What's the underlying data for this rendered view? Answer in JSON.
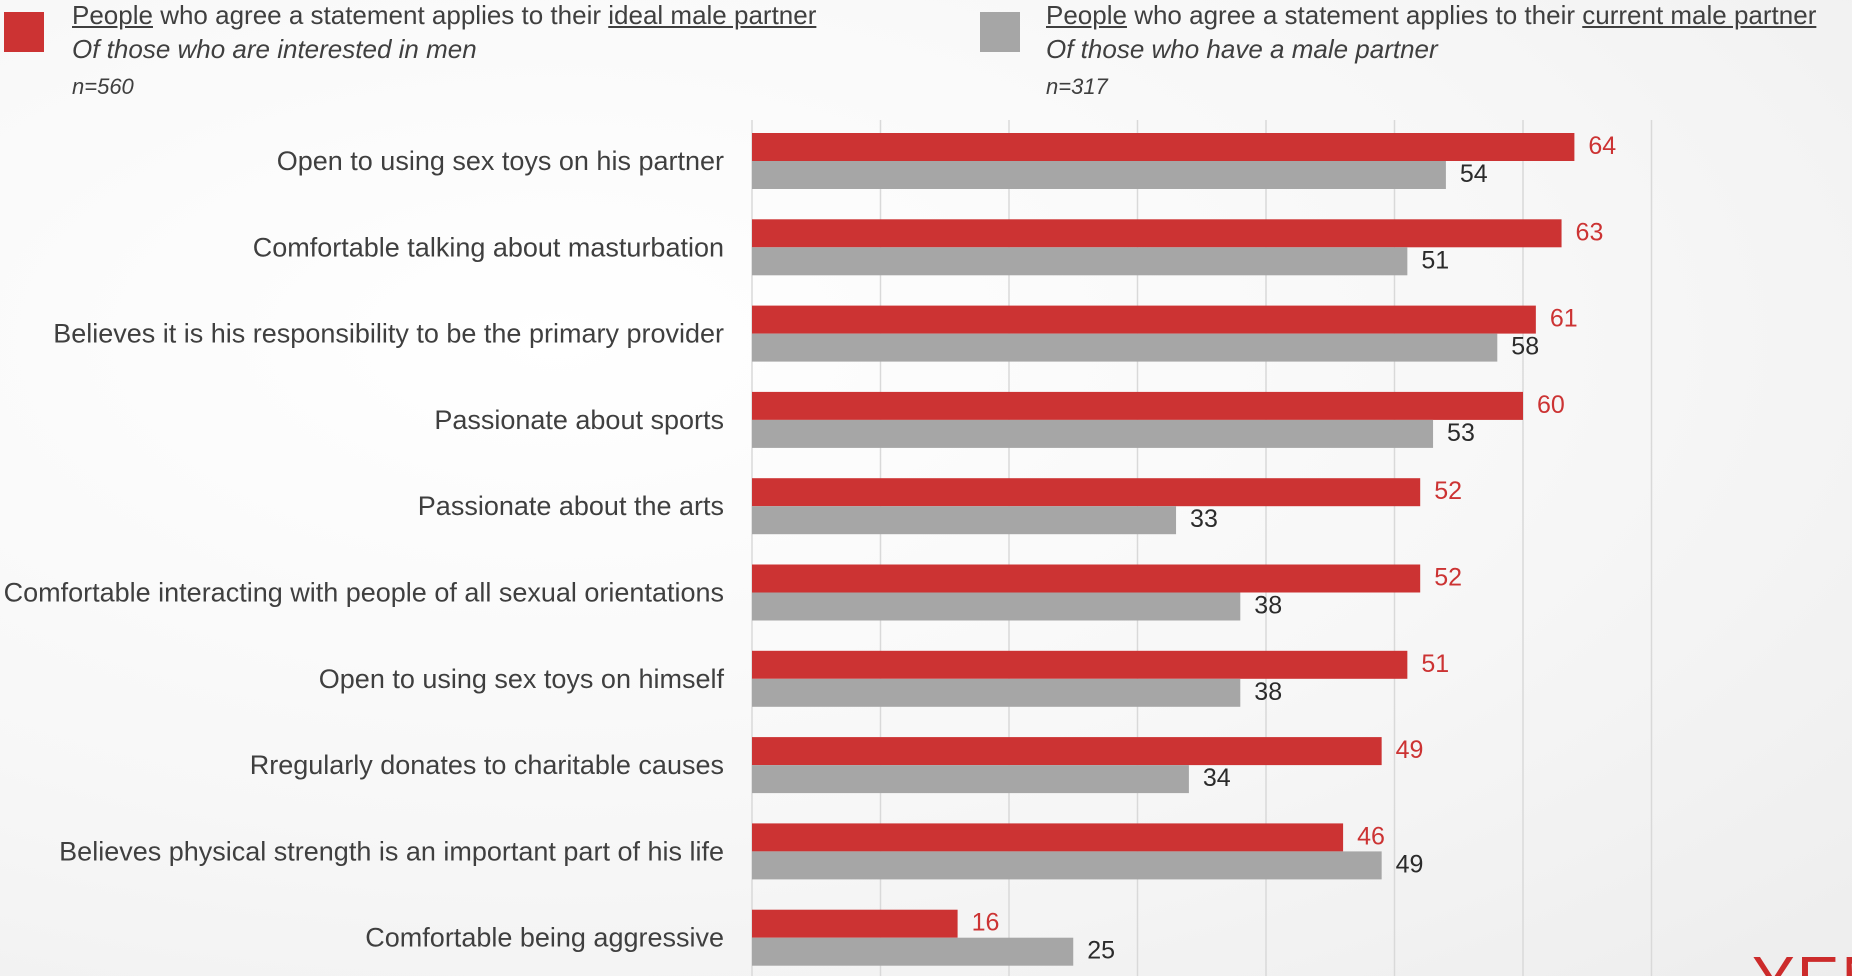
{
  "legend": {
    "ideal": {
      "word": "People",
      "text": " who agree a statement applies to their ",
      "target": "ideal male partner",
      "base_desc": "Of those who are interested in men",
      "n": "n=560"
    },
    "current": {
      "word": "People",
      "text": " who agree a statement applies to their ",
      "target": "current male partner",
      "base_desc": "Of those who have a male partner",
      "n": "n=317"
    }
  },
  "colors": {
    "ideal": "#cc3333",
    "current": "#a6a6a6",
    "ideal_label": "#cc3333",
    "current_label": "#2b2b2b",
    "gridline": "#d9d9d9"
  },
  "logo_text": "YEN",
  "chart_data": {
    "type": "bar",
    "orientation": "horizontal",
    "categories": [
      "Open to using sex toys on his partner",
      "Comfortable talking about masturbation",
      "Believes it is his responsibility to be the primary provider",
      "Passionate about sports",
      "Passionate about the arts",
      "Comfortable interacting with people of all sexual orientations",
      "Open to using sex toys on himself",
      "Rregularly donates to charitable causes",
      "Believes physical strength is an important part of his life",
      "Comfortable being aggressive"
    ],
    "series": [
      {
        "name": "People who agree a statement applies to their ideal male partner",
        "key": "ideal",
        "values": [
          64,
          63,
          61,
          60,
          52,
          52,
          51,
          49,
          46,
          16
        ]
      },
      {
        "name": "People who agree a statement applies to their current male partner",
        "key": "current",
        "values": [
          54,
          51,
          58,
          53,
          33,
          38,
          38,
          34,
          49,
          25
        ]
      }
    ],
    "xlim": [
      0,
      70
    ],
    "grid": true,
    "legend_position": "top"
  }
}
